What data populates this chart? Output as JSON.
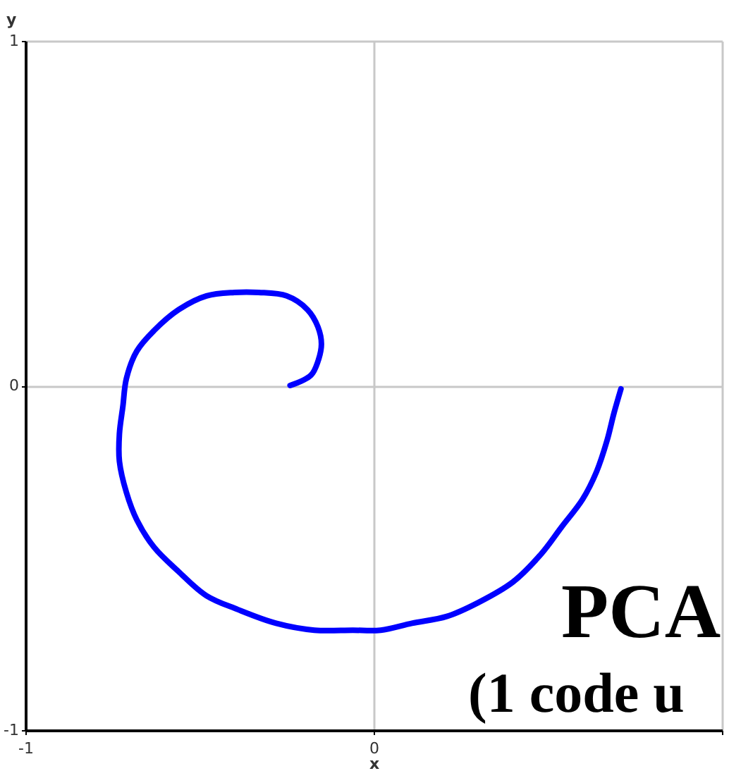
{
  "chart_data": {
    "type": "line",
    "xlabel": "x",
    "ylabel": "y",
    "x": [
      -0.24,
      -0.18,
      -0.16,
      -0.15,
      -0.16,
      -0.19,
      -0.25,
      -0.33,
      -0.4,
      -0.48,
      -0.56,
      -0.63,
      -0.68,
      -0.71,
      -0.72,
      -0.73,
      -0.73,
      -0.71,
      -0.68,
      -0.63,
      -0.56,
      -0.48,
      -0.39,
      -0.28,
      -0.17,
      -0.06,
      0.02,
      0.11,
      0.21,
      0.3,
      0.4,
      0.48,
      0.54,
      0.6,
      0.64,
      0.67,
      0.69,
      0.71
    ],
    "series": [
      {
        "color": "#0000ff",
        "values": [
          0.0,
          0.03,
          0.07,
          0.12,
          0.17,
          0.22,
          0.26,
          0.27,
          0.27,
          0.26,
          0.22,
          0.16,
          0.1,
          0.02,
          -0.06,
          -0.14,
          -0.22,
          -0.31,
          -0.39,
          -0.47,
          -0.54,
          -0.61,
          -0.65,
          -0.69,
          -0.71,
          -0.71,
          -0.71,
          -0.69,
          -0.67,
          -0.63,
          -0.57,
          -0.49,
          -0.41,
          -0.33,
          -0.25,
          -0.16,
          -0.08,
          -0.01
        ]
      }
    ],
    "xlim": [
      -1,
      1
    ],
    "ylim": [
      -1,
      1
    ],
    "xticks": [
      -1,
      0,
      {
        "value": 1,
        "label": null
      }
    ],
    "yticks": [
      -1,
      0,
      1
    ],
    "grid": true,
    "annotations": [
      "PCA",
      "(1 code u"
    ]
  }
}
